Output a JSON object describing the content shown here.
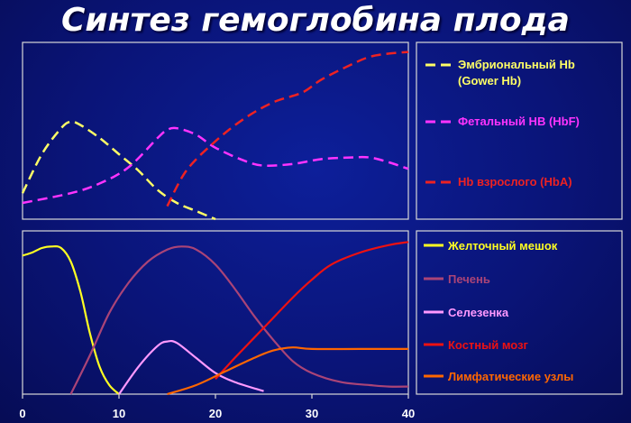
{
  "title": "Синтез гемоглобина плода",
  "chart_data": [
    {
      "type": "line",
      "title": "",
      "xlabel": "",
      "ylabel": "",
      "xlim": [
        0,
        40
      ],
      "ylim": [
        0,
        100
      ],
      "grid": false,
      "legend_placement": "right",
      "series": [
        {
          "name": "Эмбриональный Hb",
          "name_line2": "(Gower Hb)",
          "color": "#ffff66",
          "dash": "dashed",
          "x": [
            0,
            2,
            4,
            5,
            6,
            8,
            10,
            12,
            14,
            16,
            18,
            20
          ],
          "y": [
            16,
            40,
            56,
            60,
            58,
            50,
            40,
            30,
            18,
            10,
            5,
            0
          ]
        },
        {
          "name": "Фетальный HB (HbF)",
          "color": "#ff33ff",
          "dash": "dashed",
          "x": [
            0,
            5,
            8,
            11,
            14,
            15,
            16,
            18,
            20,
            23,
            25,
            28,
            31,
            34,
            36,
            38,
            40
          ],
          "y": [
            10,
            16,
            22,
            32,
            50,
            55,
            56,
            52,
            44,
            36,
            33,
            34,
            37,
            38,
            38,
            35,
            31
          ]
        },
        {
          "name": "Hb взрослого (HbA)",
          "color": "#ee2222",
          "dash": "dashed",
          "x": [
            15,
            17,
            20,
            23,
            26,
            29,
            31,
            34,
            36,
            38,
            40
          ],
          "y": [
            8,
            30,
            48,
            62,
            72,
            78,
            86,
            95,
            100,
            102,
            103
          ]
        }
      ]
    },
    {
      "type": "line",
      "title": "",
      "xlabel": "",
      "ylabel": "",
      "x_ticks": [
        0,
        10,
        20,
        30,
        40
      ],
      "xlim": [
        0,
        40
      ],
      "ylim": [
        0,
        100
      ],
      "grid": false,
      "legend_placement": "right",
      "series": [
        {
          "name": "Желточный мешок",
          "color": "#ffff22",
          "x": [
            0,
            1,
            2,
            3,
            4,
            5,
            6,
            7,
            8,
            9,
            10
          ],
          "y": [
            92,
            94,
            97,
            98,
            97,
            88,
            68,
            40,
            18,
            6,
            0
          ]
        },
        {
          "name": "Печень",
          "color": "#aa4477",
          "x": [
            5,
            7,
            9,
            11,
            13,
            15,
            16.5,
            18,
            20,
            22,
            24,
            26,
            28,
            30,
            33,
            36,
            38,
            40
          ],
          "y": [
            0,
            26,
            54,
            74,
            88,
            96,
            98,
            96,
            86,
            70,
            52,
            36,
            22,
            14,
            8,
            6,
            5,
            5
          ]
        },
        {
          "name": "Селезенка",
          "color": "#ff99ff",
          "x": [
            10,
            12,
            14,
            15,
            16,
            18,
            20,
            22,
            25
          ],
          "y": [
            0,
            18,
            32,
            35,
            34,
            24,
            14,
            8,
            2
          ]
        },
        {
          "name": "Костный мозг",
          "color": "#ee1111",
          "x": [
            20,
            22,
            25,
            28,
            30,
            32,
            35,
            38,
            40
          ],
          "y": [
            10,
            24,
            44,
            64,
            76,
            86,
            94,
            99,
            101
          ]
        },
        {
          "name": "Лимфатические узлы",
          "color": "#ff6600",
          "x": [
            15,
            18,
            21,
            24,
            26,
            28,
            30,
            35,
            40
          ],
          "y": [
            0,
            6,
            15,
            24,
            29,
            31,
            30,
            30,
            30
          ]
        }
      ]
    }
  ]
}
